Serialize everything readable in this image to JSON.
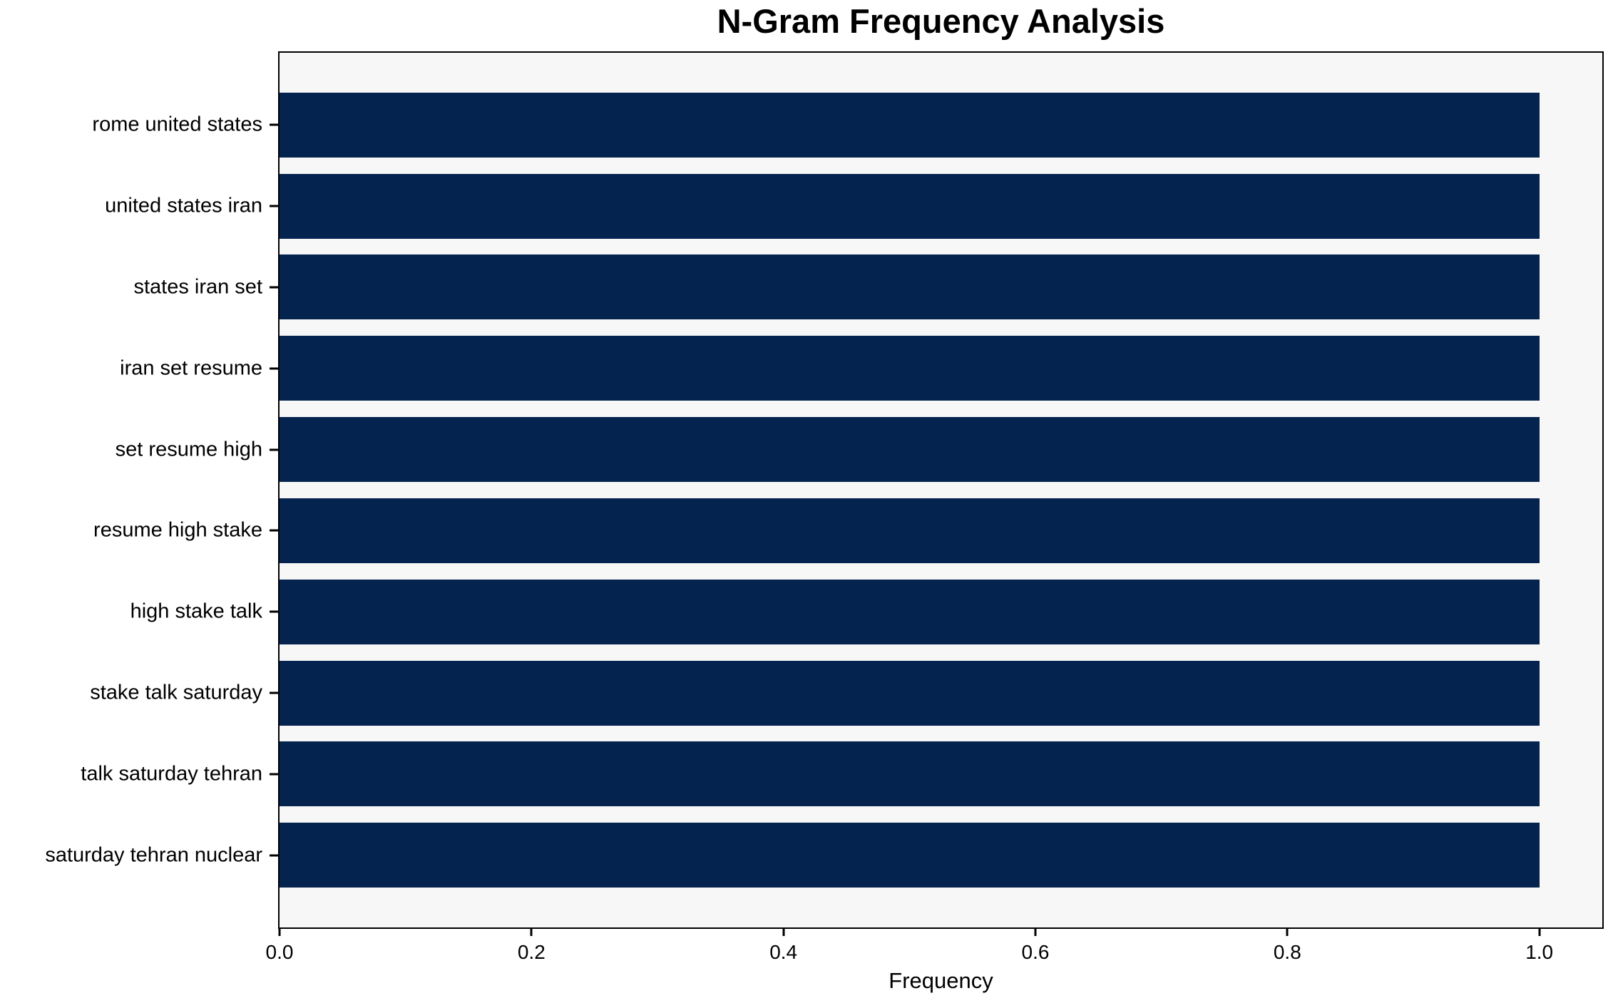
{
  "chart_data": {
    "type": "bar",
    "orientation": "horizontal",
    "title": "N-Gram Frequency Analysis",
    "xlabel": "Frequency",
    "ylabel": "",
    "categories": [
      "rome united states",
      "united states iran",
      "states iran set",
      "iran set resume",
      "set resume high",
      "resume high stake",
      "high stake talk",
      "stake talk saturday",
      "talk saturday tehran",
      "saturday tehran nuclear"
    ],
    "values": [
      1.0,
      1.0,
      1.0,
      1.0,
      1.0,
      1.0,
      1.0,
      1.0,
      1.0,
      1.0
    ],
    "xlim": [
      0,
      1.05
    ],
    "xtick_values": [
      0.0,
      0.2,
      0.4,
      0.6,
      0.8,
      1.0
    ],
    "xtick_labels": [
      "0.0",
      "0.2",
      "0.4",
      "0.6",
      "0.8",
      "1.0"
    ],
    "grid": false,
    "legend": null,
    "bar_color": "#05234f",
    "plot_bg": "#f7f7f8",
    "fig_bg": "#ffffff",
    "text_color": "#000000",
    "bar_height_fraction": 0.8,
    "y_edge_margin_units": 0.89
  }
}
